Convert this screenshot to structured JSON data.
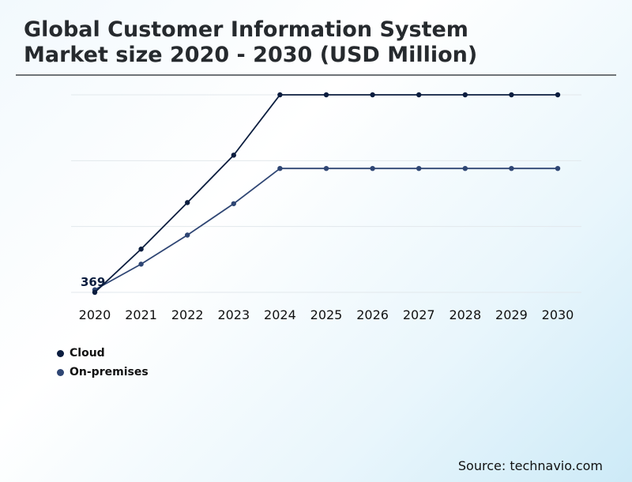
{
  "title_line1": "Global Customer Information System",
  "title_line2": "Market size 2020 - 2030 (USD Million)",
  "source": "Source: technavio.com",
  "colors": {
    "cloud": "#0b1d3f",
    "on_premises": "#2f4674",
    "gridline": "#e2e8ec",
    "title": "#262a2e"
  },
  "chart_data": {
    "type": "line",
    "title": "Global Customer Information System Market size 2020 - 2030 (USD Million)",
    "categories": [
      "2020",
      "2021",
      "2022",
      "2023",
      "2024",
      "2025",
      "2026",
      "2027",
      "2028",
      "2029",
      "2030"
    ],
    "series": [
      {
        "name": "Cloud",
        "values": [
          369,
          1060,
          1803,
          2560,
          3524,
          3524,
          3524,
          3524,
          3524,
          3524,
          3524
        ],
        "color": "#0b1d3f"
      },
      {
        "name": "On-premises",
        "values": [
          410,
          820,
          1284,
          1785,
          2348,
          2348,
          2348,
          2348,
          2348,
          2348,
          2348
        ],
        "color": "#2f4674"
      }
    ],
    "annotations": [
      {
        "series": "Cloud",
        "category": "2020",
        "text": "369"
      }
    ],
    "ylim": [
      369,
      3524
    ],
    "y_axis_visible": false,
    "grid": "horizontal",
    "legend_position": "bottom-left"
  }
}
